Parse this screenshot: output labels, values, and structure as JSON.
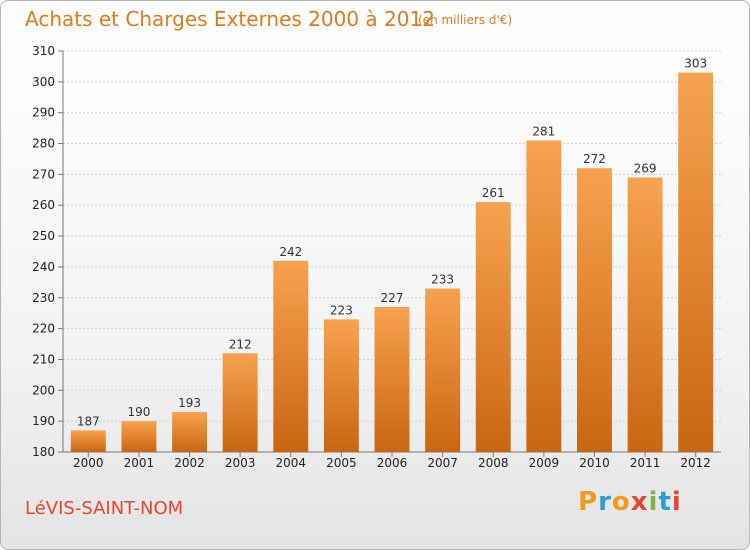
{
  "header": {
    "title": "Achats et Charges Externes 2000 à 2012",
    "subtitle": "(en milliers d'€)"
  },
  "footer": {
    "commune": "LéVIS-SAINT-NOM",
    "logo_text": "Proxiti"
  },
  "colors": {
    "bar_light": "#f7a24f",
    "bar_dark": "#c96612",
    "title": "#e07a1f",
    "commune": "#e8452e"
  },
  "chart_data": {
    "type": "bar",
    "title": "Achats et Charges Externes 2000 à 2012",
    "subtitle": "(en milliers d'€)",
    "xlabel": "",
    "ylabel": "",
    "categories": [
      "2000",
      "2001",
      "2002",
      "2003",
      "2004",
      "2005",
      "2006",
      "2007",
      "2008",
      "2009",
      "2010",
      "2011",
      "2012"
    ],
    "values": [
      187,
      190,
      193,
      212,
      242,
      223,
      227,
      233,
      261,
      281,
      272,
      269,
      303
    ],
    "ylim": [
      180,
      310
    ],
    "yticks": [
      180,
      190,
      200,
      210,
      220,
      230,
      240,
      250,
      260,
      270,
      280,
      290,
      300,
      310
    ],
    "grid": true,
    "legend": "none"
  }
}
